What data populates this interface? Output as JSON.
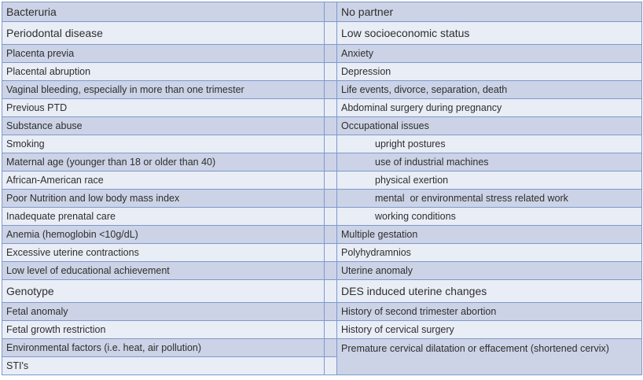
{
  "document": {
    "description": "Two-column risk factor table",
    "columns": [
      "left",
      "right"
    ]
  },
  "colors": {
    "row_dark": "#ccd3e6",
    "row_light": "#e9edf6",
    "border": "#7d99cc",
    "text": "#2e2e2e",
    "background": "#ffffff"
  },
  "table": {
    "rows": [
      {
        "left": "Bacteruria",
        "right": "No partner",
        "emphasis": "md"
      },
      {
        "left": "Periodontal disease",
        "right": "Low socioeconomic status",
        "emphasis": "lg"
      },
      {
        "left": "Placenta previa",
        "right": "Anxiety"
      },
      {
        "left": "Placental abruption",
        "right": "Depression"
      },
      {
        "left": "Vaginal bleeding, especially in more than one trimester",
        "right": "Life events, divorce, separation, death"
      },
      {
        "left": "Previous PTD",
        "right": "Abdominal surgery during pregnancy"
      },
      {
        "left": "Substance abuse",
        "right": "Occupational issues"
      },
      {
        "left": "Smoking",
        "right": "upright postures",
        "right_indent": true
      },
      {
        "left": "Maternal age (younger than 18 or older than 40)",
        "right": "use of industrial machines",
        "right_indent": true
      },
      {
        "left": "African-American race",
        "right": "physical exertion",
        "right_indent": true
      },
      {
        "left": "Poor Nutrition and low body mass index",
        "right": "mental  or environmental stress related work",
        "right_indent": true
      },
      {
        "left": "Inadequate prenatal care",
        "right": "working conditions",
        "right_indent": true
      },
      {
        "left": "Anemia (hemoglobin <10g/dL)",
        "right": "Multiple gestation"
      },
      {
        "left": "Excessive uterine contractions",
        "right": "Polyhydramnios"
      },
      {
        "left": "Low level of educational achievement",
        "right": "Uterine anomaly"
      },
      {
        "left": "Genotype",
        "right": "DES induced uterine changes",
        "emphasis": "lg"
      },
      {
        "left": "Fetal anomaly",
        "right": "History of second trimester abortion"
      },
      {
        "left": "Fetal growth restriction",
        "right": "History of cervical surgery"
      },
      {
        "left": "Environmental factors (i.e. heat, air pollution)",
        "right": "Premature cervical dilatation or effacement (shortened cervix)",
        "right_rowspan": 2
      },
      {
        "left": "STI's",
        "right": null
      }
    ]
  }
}
